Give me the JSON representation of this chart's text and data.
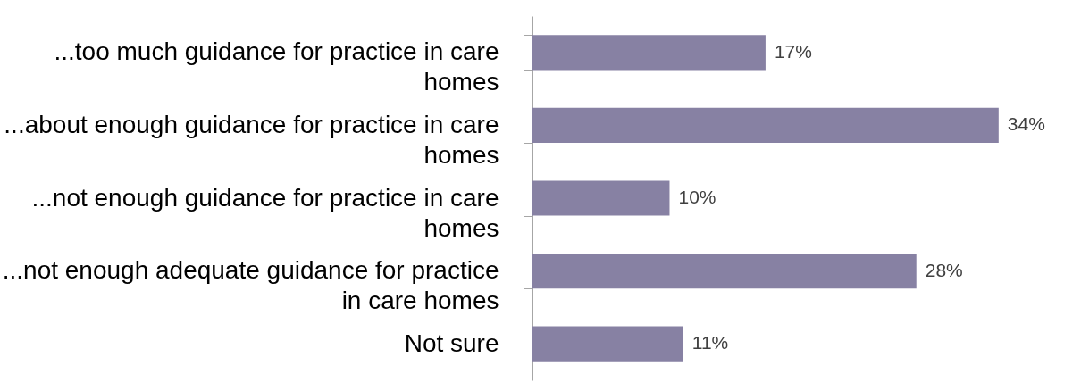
{
  "chart_data": {
    "type": "bar",
    "orientation": "horizontal",
    "categories": [
      "...too much guidance for practice in care homes",
      "...about enough guidance for practice in care homes",
      "...not enough guidance for practice in care homes",
      "...not enough adequate guidance for practice in care homes",
      "Not sure"
    ],
    "values": [
      17,
      34,
      10,
      28,
      11
    ],
    "value_labels": [
      "17%",
      "34%",
      "10%",
      "28%",
      "11%"
    ],
    "color": "#8781a3",
    "tick_labels": "y"
  }
}
